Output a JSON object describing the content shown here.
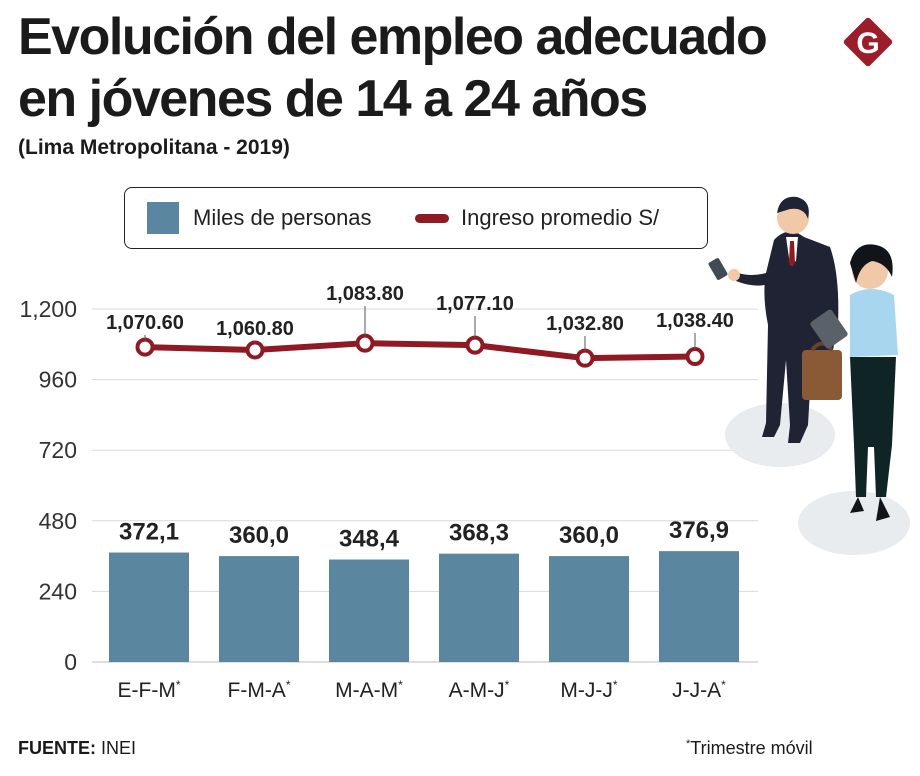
{
  "header": {
    "title": "Evolución del empleo adecuado en jóvenes de 14 a 24 años",
    "subtitle": "(Lima Metropolitana - 2019)",
    "logo_letter": "G"
  },
  "legend": {
    "bars_label": "Miles de personas",
    "line_label": "Ingreso promedio S/"
  },
  "colors": {
    "bar": "#5a86a0",
    "line": "#8f1a24",
    "grid": "#d9d9d9",
    "logo": "#9b1d2a"
  },
  "chart_data": {
    "type": "bar",
    "categories": [
      "E-F-M",
      "F-M-A",
      "M-A-M",
      "A-M-J",
      "M-J-J",
      "J-J-A"
    ],
    "category_marker": "*",
    "yticks": [
      0,
      240,
      480,
      720,
      960,
      1200
    ],
    "ytick_labels": [
      "0",
      "240",
      "480",
      "720",
      "960",
      "1,200"
    ],
    "ylim": [
      0,
      1200
    ],
    "series": [
      {
        "name": "Miles de personas",
        "kind": "bar",
        "values": [
          372.1,
          360.0,
          348.4,
          368.3,
          360.0,
          376.9
        ],
        "labels": [
          "372,1",
          "360,0",
          "348,4",
          "368,3",
          "360,0",
          "376,9"
        ]
      },
      {
        "name": "Ingreso promedio S/",
        "kind": "line",
        "values": [
          1070.6,
          1060.8,
          1083.8,
          1077.1,
          1032.8,
          1038.4
        ],
        "labels": [
          "1,070.60",
          "1,060.80",
          "1,083.80",
          "1,077.10",
          "1,032.80",
          "1,038.40"
        ]
      }
    ]
  },
  "footer": {
    "source_label": "FUENTE:",
    "source_value": "INEI",
    "note_marker": "*",
    "note_text": "Trimestre móvil"
  }
}
